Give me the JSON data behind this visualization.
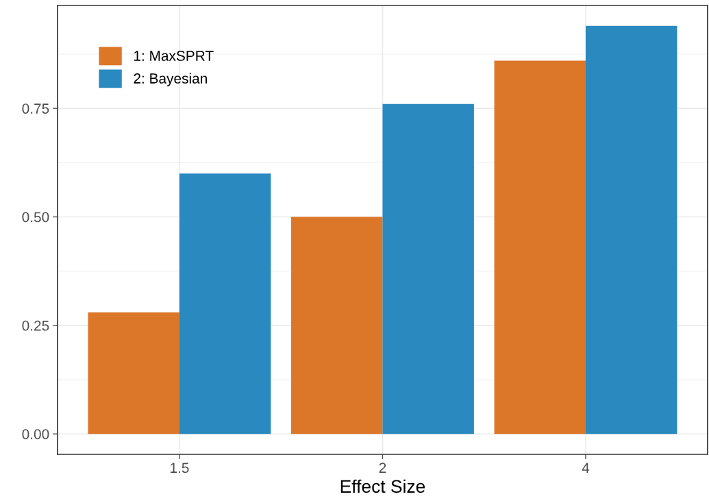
{
  "chart_data": {
    "type": "bar",
    "xlabel": "Effect Size",
    "categories": [
      "1.5",
      "2",
      "4"
    ],
    "series": [
      {
        "name": "1: MaxSPRT",
        "color": "#dc772a",
        "values": [
          0.28,
          0.5,
          0.86
        ]
      },
      {
        "name": "2: Bayesian",
        "color": "#2a89bf",
        "values": [
          0.6,
          0.76,
          0.94
        ]
      }
    ],
    "ylim": [
      -0.047,
      0.987
    ],
    "yticks": [
      {
        "value": 0,
        "label": "0.00"
      },
      0.25,
      {
        "value": 0.5,
        "label": "0.50"
      },
      0.75
    ],
    "grid": true,
    "legend": "top left"
  }
}
